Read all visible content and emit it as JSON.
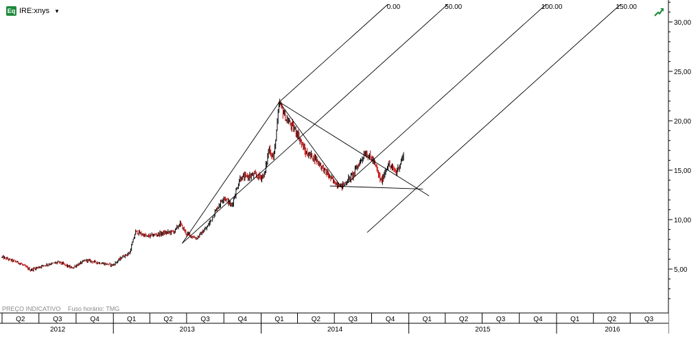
{
  "header": {
    "icon_label": "Eq",
    "symbol": "IRE:xnys"
  },
  "footer": {
    "price_note": "PREÇO INDICATIVO",
    "timezone_note": "Fuso horário: TMG"
  },
  "colors": {
    "up_candle": "#000000",
    "down_candle": "#cc0000",
    "fork_lines": "#000000",
    "icon_green": "#1e8a3c"
  },
  "chart_data": {
    "type": "candlestick",
    "y_axis": {
      "ticks": [
        5,
        10,
        15,
        20,
        25,
        30
      ],
      "tick_labels": [
        "5,00",
        "10,00",
        "15,00",
        "20,00",
        "25,00",
        "30,00"
      ],
      "range": [
        0,
        32
      ]
    },
    "x_axis": {
      "quarters": [
        "Q2",
        "Q3",
        "Q4",
        "Q1",
        "Q2",
        "Q3",
        "Q4",
        "Q1",
        "Q2",
        "Q3",
        "Q4",
        "Q1",
        "Q2",
        "Q3",
        "Q4",
        "Q1",
        "Q2",
        "Q3"
      ],
      "years": [
        "2012",
        "2013",
        "2014",
        "2015",
        "2016"
      ],
      "start": "2012-04-01",
      "end": "2016-09-30"
    },
    "price_path": [
      [
        "2012-04-01",
        6.2
      ],
      [
        "2012-05-15",
        5.6
      ],
      [
        "2012-06-10",
        4.9
      ],
      [
        "2012-07-15",
        5.4
      ],
      [
        "2012-08-20",
        5.7
      ],
      [
        "2012-09-20",
        5.1
      ],
      [
        "2012-10-25",
        5.9
      ],
      [
        "2012-11-30",
        5.6
      ],
      [
        "2012-12-31",
        5.4
      ],
      [
        "2013-01-25",
        6.3
      ],
      [
        "2013-02-10",
        6.6
      ],
      [
        "2013-02-25",
        8.8
      ],
      [
        "2013-03-25",
        8.3
      ],
      [
        "2013-04-30",
        8.6
      ],
      [
        "2013-05-31",
        8.8
      ],
      [
        "2013-06-15",
        9.6
      ],
      [
        "2013-06-30",
        8.6
      ],
      [
        "2013-07-25",
        8.1
      ],
      [
        "2013-08-20",
        9.2
      ],
      [
        "2013-09-15",
        11.2
      ],
      [
        "2013-10-01",
        12.3
      ],
      [
        "2013-10-20",
        11.4
      ],
      [
        "2013-11-10",
        14.2
      ],
      [
        "2013-12-15",
        14.5
      ],
      [
        "2013-12-31",
        14.3
      ],
      [
        "2014-01-10",
        14.6
      ],
      [
        "2014-01-20",
        17.2
      ],
      [
        "2014-02-01",
        16.2
      ],
      [
        "2014-02-15",
        21.8
      ],
      [
        "2014-03-05",
        20.1
      ],
      [
        "2014-03-31",
        18.8
      ],
      [
        "2014-04-20",
        16.8
      ],
      [
        "2014-05-15",
        16.2
      ],
      [
        "2014-06-10",
        14.8
      ],
      [
        "2014-06-30",
        13.8
      ],
      [
        "2014-07-20",
        13.4
      ],
      [
        "2014-08-15",
        14.5
      ],
      [
        "2014-09-15",
        16.8
      ],
      [
        "2014-10-05",
        16.0
      ],
      [
        "2014-10-25",
        13.8
      ],
      [
        "2014-11-10",
        15.6
      ],
      [
        "2014-12-01",
        14.8
      ],
      [
        "2014-12-20",
        16.6
      ]
    ],
    "pitchfork": {
      "pivot": [
        "2014-02-15",
        21.9
      ],
      "low_pivot": [
        "2013-06-20",
        7.6
      ],
      "high_pivot": [
        "2014-07-20",
        13.2
      ],
      "levels": [
        "0.00",
        "50.00",
        "100.00",
        "150.00"
      ]
    },
    "fan_lines": [
      {
        "from": [
          "2014-02-15",
          21.9
        ],
        "to": [
          "2015-02-20",
          12.4
        ]
      },
      {
        "from": [
          "2014-02-15",
          21.9
        ],
        "to": [
          "2014-07-20",
          13.2
        ]
      }
    ],
    "horizontal_trend": {
      "from": [
        "2014-06-20",
        13.4
      ],
      "to": [
        "2015-02-05",
        13.1
      ]
    },
    "grid": false,
    "legend": "none"
  }
}
